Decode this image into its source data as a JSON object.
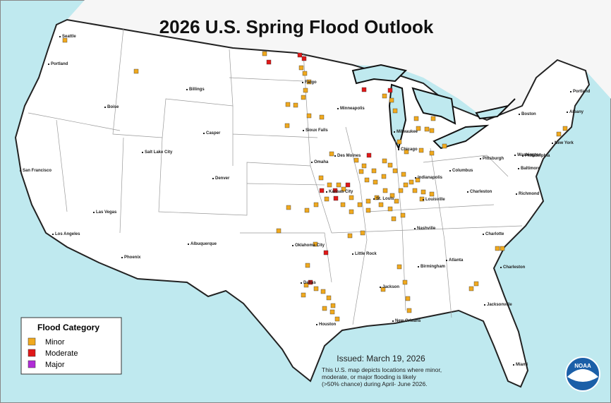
{
  "title": "2026 U.S. Spring Flood Outlook",
  "legend": {
    "title": "Flood Category",
    "items": [
      {
        "label": "Minor",
        "color": "#f0a91e"
      },
      {
        "label": "Moderate",
        "color": "#e01818"
      },
      {
        "label": "Major",
        "color": "#b02cd6"
      }
    ]
  },
  "issued": "Issued: March 19, 2026",
  "description": [
    "This U.S. map depicts locations where minor,",
    "moderate, or major flooding is likely",
    "(>50% chance) during April- June 2026."
  ],
  "logo": "NOAA",
  "cities": [
    "Seattle",
    "Portland",
    "Billings",
    "Boise",
    "Casper",
    "Salt Lake City",
    "San Francisco",
    "Denver",
    "Las Vegas",
    "Los Angeles",
    "Albuquerque",
    "Phoenix",
    "Fargo",
    "Minneapolis",
    "Sioux Falls",
    "Omaha",
    "Des Moines",
    "Kansas City",
    "Oklahoma City",
    "Dallas",
    "Houston",
    "Little Rock",
    "Jackson",
    "New Orleans",
    "Nashville",
    "Birmingham",
    "Atlanta",
    "Charlotte",
    "Charleston",
    "Jacksonville",
    "Miami",
    "Milwaukee",
    "Chicago",
    "Indianapolis",
    "St. Louis",
    "Louisville",
    "Columbus",
    "Charleston",
    "Pittsburgh",
    "Washington",
    "Baltimore",
    "Philadelphia",
    "New York",
    "Boston",
    "Albany",
    "Portland",
    "Richmond"
  ]
}
